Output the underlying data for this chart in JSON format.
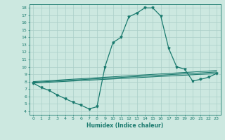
{
  "xlabel": "Humidex (Indice chaleur)",
  "xlim": [
    -0.5,
    23.5
  ],
  "ylim": [
    3.5,
    18.5
  ],
  "yticks": [
    4,
    5,
    6,
    7,
    8,
    9,
    10,
    11,
    12,
    13,
    14,
    15,
    16,
    17,
    18
  ],
  "xticks": [
    0,
    1,
    2,
    3,
    4,
    5,
    6,
    7,
    8,
    9,
    10,
    11,
    12,
    13,
    14,
    15,
    16,
    17,
    18,
    19,
    20,
    21,
    22,
    23
  ],
  "bg_color": "#cce8e0",
  "line_color": "#1a7a6e",
  "grid_color": "#aacfc8",
  "main_x": [
    0,
    1,
    2,
    3,
    4,
    5,
    6,
    7,
    8,
    9,
    10,
    11,
    12,
    13,
    14,
    15,
    16,
    17,
    18,
    19,
    20,
    21,
    22,
    23
  ],
  "main_y": [
    7.8,
    7.2,
    6.8,
    6.2,
    5.7,
    5.2,
    4.8,
    4.3,
    4.6,
    10.0,
    13.3,
    14.0,
    16.8,
    17.3,
    18.0,
    18.0,
    16.9,
    12.5,
    10.0,
    9.7,
    8.1,
    8.3,
    8.6,
    9.1
  ],
  "line1": {
    "x": [
      0,
      23
    ],
    "y": [
      7.8,
      9.1
    ]
  },
  "line2": {
    "x": [
      0,
      23
    ],
    "y": [
      7.9,
      9.3
    ]
  },
  "line3": {
    "x": [
      0,
      23
    ],
    "y": [
      8.0,
      9.5
    ]
  }
}
